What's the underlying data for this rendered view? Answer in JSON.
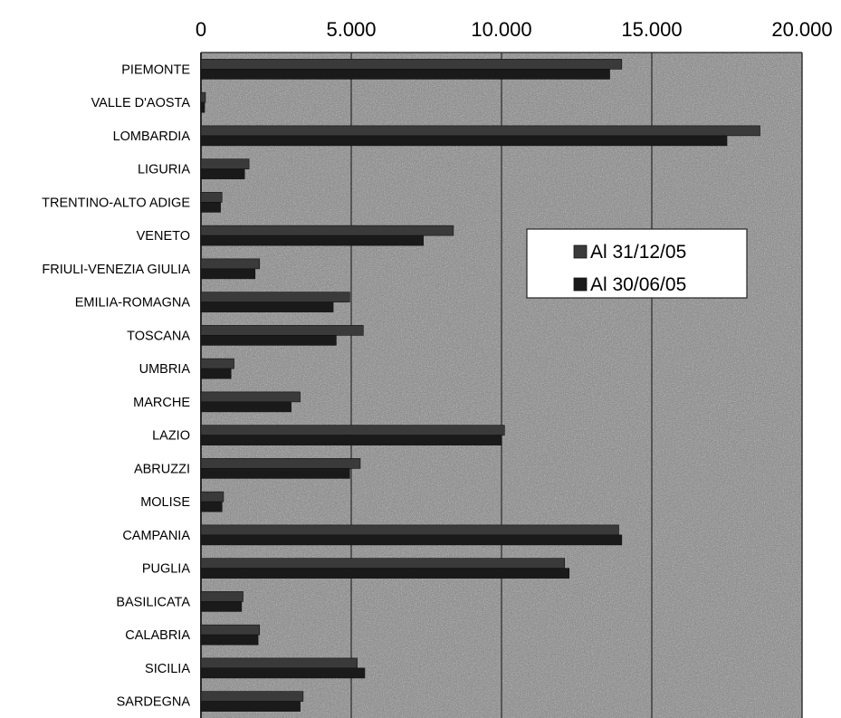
{
  "colors": {
    "plot_background": "#8c8c8c",
    "series_1": "#3a3a3a",
    "series_2": "#1a1a1a",
    "gridline": "#2a2a2a",
    "legend_background": "#ffffff"
  },
  "chart_data": {
    "type": "bar",
    "orientation": "horizontal",
    "title": "",
    "xlabel": "",
    "ylabel": "",
    "xlim": [
      0,
      20000
    ],
    "x_ticks": [
      0,
      5000,
      10000,
      15000,
      20000
    ],
    "x_tick_labels": [
      "0",
      "5.000",
      "10.000",
      "15.000",
      "20.000"
    ],
    "x_axis_position": "top",
    "grid": true,
    "legend_position": "right",
    "categories": [
      "PIEMONTE",
      "VALLE D'AOSTA",
      "LOMBARDIA",
      "LIGURIA",
      "TRENTINO-ALTO ADIGE",
      "VENETO",
      "FRIULI-VENEZIA GIULIA",
      "EMILIA-ROMAGNA",
      "TOSCANA",
      "UMBRIA",
      "MARCHE",
      "LAZIO",
      "ABRUZZI",
      "MOLISE",
      "CAMPANIA",
      "PUGLIA",
      "BASILICATA",
      "CALABRIA",
      "SICILIA",
      "SARDEGNA"
    ],
    "series": [
      {
        "name": "Al 31/12/05",
        "values": [
          14000,
          150,
          18600,
          1600,
          700,
          8400,
          1950,
          4950,
          5400,
          1100,
          3300,
          10100,
          5300,
          750,
          13900,
          12100,
          1400,
          1950,
          5200,
          3400
        ]
      },
      {
        "name": "Al 30/06/05",
        "values": [
          13600,
          120,
          17500,
          1450,
          650,
          7400,
          1800,
          4400,
          4500,
          1000,
          3000,
          10000,
          4950,
          700,
          14000,
          12250,
          1350,
          1900,
          5450,
          3300
        ]
      }
    ]
  }
}
